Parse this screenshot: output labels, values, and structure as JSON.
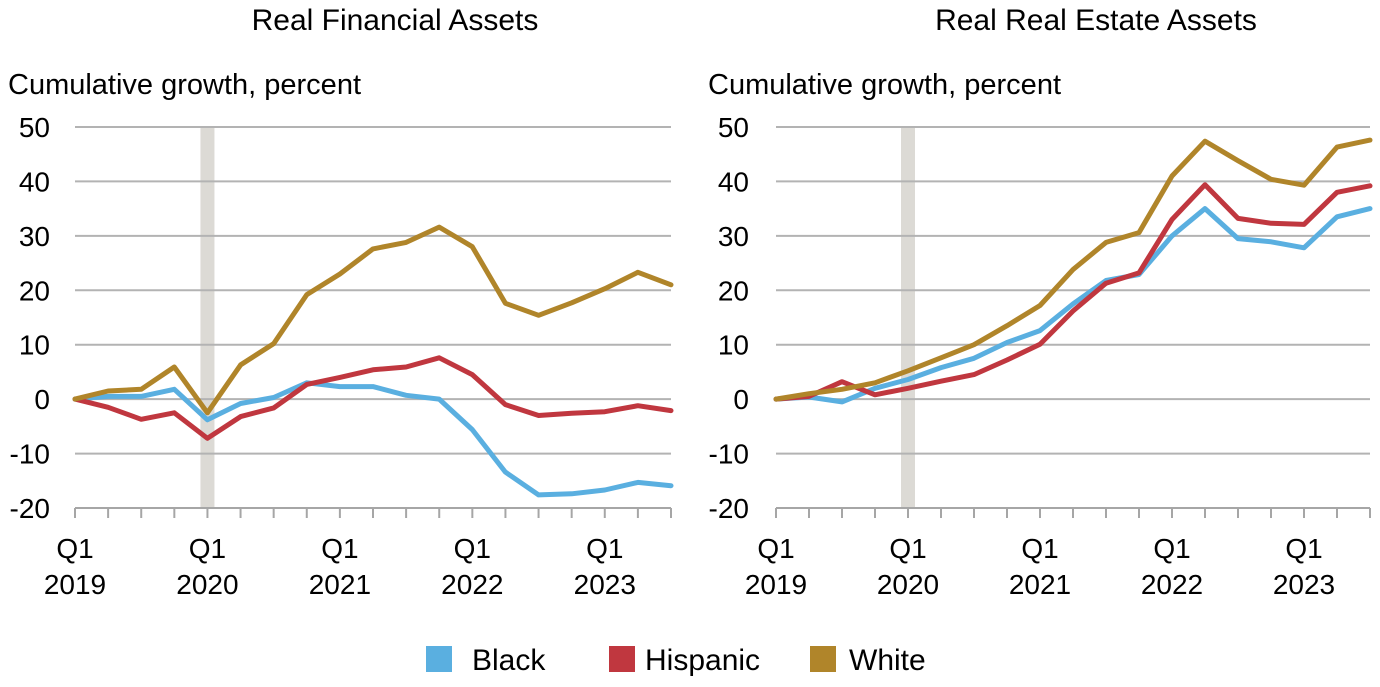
{
  "legend": [
    {
      "label": "Black",
      "color": "#5aafe0"
    },
    {
      "label": "Hispanic",
      "color": "#c0373f"
    },
    {
      "label": "White",
      "color": "#b0852a"
    }
  ],
  "chart_data": [
    {
      "type": "line",
      "title": "Real Financial Assets",
      "ylabel": "Cumulative growth, percent",
      "ylim": [
        -20,
        50
      ],
      "yticks": [
        "50",
        "40",
        "30",
        "20",
        "10",
        "0",
        "-10",
        "-20"
      ],
      "xticks": [
        {
          "q": "Q1",
          "year": "2019"
        },
        {
          "q": "Q1",
          "year": "2020"
        },
        {
          "q": "Q1",
          "year": "2021"
        },
        {
          "q": "Q1",
          "year": "2022"
        },
        {
          "q": "Q1",
          "year": "2023"
        }
      ],
      "x": [
        "2019Q1",
        "2019Q2",
        "2019Q3",
        "2019Q4",
        "2020Q1",
        "2020Q2",
        "2020Q3",
        "2020Q4",
        "2021Q1",
        "2021Q2",
        "2021Q3",
        "2021Q4",
        "2022Q1",
        "2022Q2",
        "2022Q3",
        "2022Q4",
        "2023Q1",
        "2023Q2",
        "2023Q3"
      ],
      "shaded_period": "2020Q1",
      "grid": true,
      "series": [
        {
          "name": "Black",
          "values": [
            0,
            0.5,
            0.5,
            1.8,
            -3.8,
            -0.8,
            0.3,
            3,
            2.3,
            2.3,
            0.7,
            0,
            -5.6,
            -13.4,
            -17.6,
            -17.4,
            -16.7,
            -15.3,
            -15.9
          ]
        },
        {
          "name": "Hispanic",
          "values": [
            0,
            -1.5,
            -3.7,
            -2.5,
            -7.2,
            -3.2,
            -1.6,
            2.7,
            4,
            5.4,
            5.9,
            7.6,
            4.5,
            -1,
            -3,
            -2.6,
            -2.3,
            -1.2,
            -2.1
          ]
        },
        {
          "name": "White",
          "values": [
            0,
            1.5,
            1.8,
            5.9,
            -2.5,
            6.3,
            10.2,
            19.2,
            23,
            27.6,
            28.8,
            31.6,
            28,
            17.6,
            15.4,
            17.7,
            20.3,
            23.3,
            21
          ]
        }
      ]
    },
    {
      "type": "line",
      "title": "Real Real Estate Assets",
      "ylabel": "Cumulative growth, percent",
      "ylim": [
        -20,
        50
      ],
      "yticks": [
        "50",
        "40",
        "30",
        "20",
        "10",
        "0",
        "-10",
        "-20"
      ],
      "xticks": [
        {
          "q": "Q1",
          "year": "2019"
        },
        {
          "q": "Q1",
          "year": "2020"
        },
        {
          "q": "Q1",
          "year": "2021"
        },
        {
          "q": "Q1",
          "year": "2022"
        },
        {
          "q": "Q1",
          "year": "2023"
        }
      ],
      "x": [
        "2019Q1",
        "2019Q2",
        "2019Q3",
        "2019Q4",
        "2020Q1",
        "2020Q2",
        "2020Q3",
        "2020Q4",
        "2021Q1",
        "2021Q2",
        "2021Q3",
        "2021Q4",
        "2022Q1",
        "2022Q2",
        "2022Q3",
        "2022Q4",
        "2023Q1",
        "2023Q2",
        "2023Q3"
      ],
      "shaded_period": "2020Q1",
      "grid": true,
      "series": [
        {
          "name": "Black",
          "values": [
            0,
            0.4,
            -0.5,
            2,
            3.6,
            5.8,
            7.5,
            10.4,
            12.6,
            17.5,
            21.8,
            22.9,
            30,
            35,
            29.5,
            28.9,
            27.8,
            33.5,
            35
          ]
        },
        {
          "name": "Hispanic",
          "values": [
            0,
            0.5,
            3.2,
            0.8,
            2,
            3.3,
            4.5,
            7.2,
            10.1,
            16.2,
            21.3,
            23.2,
            33,
            39.4,
            33.2,
            32.3,
            32.1,
            38,
            39.2
          ]
        },
        {
          "name": "White",
          "values": [
            0,
            1,
            1.8,
            3,
            5.2,
            7.6,
            10,
            13.5,
            17.2,
            23.8,
            28.8,
            30.6,
            41,
            47.4,
            43.8,
            40.4,
            39.3,
            46.3,
            47.6
          ]
        }
      ]
    }
  ]
}
